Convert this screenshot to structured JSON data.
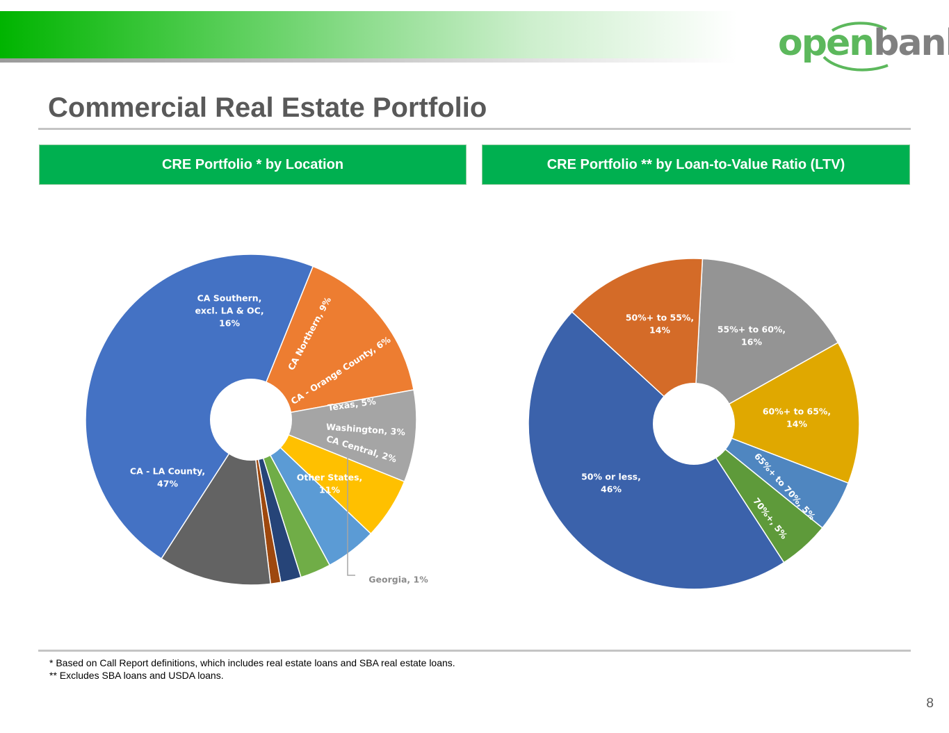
{
  "brand": {
    "name_part1": "open",
    "name_part2": "bank",
    "green": "#5cb85c",
    "gray": "#808080",
    "banner_color": "#00b400"
  },
  "page": {
    "title": "Commercial Real Estate Portfolio",
    "number": "8"
  },
  "panels": {
    "left_header": "CRE Portfolio * by Location",
    "right_header": "CRE Portfolio ** by Loan-to-Value Ratio (LTV)",
    "header_color": "#00b050"
  },
  "footnotes": {
    "note1": "* Based on Call Report definitions, which includes real estate loans and SBA real estate loans.",
    "note2": "** Excludes SBA loans and USDA loans."
  },
  "chart_data": [
    {
      "type": "pie",
      "title": "CRE Portfolio * by Location",
      "unit": "%",
      "donut": true,
      "slices": [
        {
          "name": "CA Southern, excl. LA & OC",
          "value": 16,
          "color": "#ed7d31",
          "lines": [
            "CA Southern,",
            "excl. LA & OC,",
            "16%"
          ]
        },
        {
          "name": "CA Northern",
          "value": 9,
          "color": "#a5a5a5",
          "lines": [
            "CA Northern, 9%"
          ]
        },
        {
          "name": "CA - Orange County",
          "value": 6,
          "color": "#ffc000",
          "lines": [
            "CA - Orange County, 6%"
          ]
        },
        {
          "name": "Texas",
          "value": 5,
          "color": "#5b9bd5",
          "lines": [
            "Texas, 5%"
          ]
        },
        {
          "name": "Washington",
          "value": 3,
          "color": "#70ad47",
          "lines": [
            "Washington, 3%"
          ]
        },
        {
          "name": "CA Central",
          "value": 2,
          "color": "#264478",
          "lines": [
            "CA Central, 2%"
          ]
        },
        {
          "name": "Georgia",
          "value": 1,
          "color": "#9e480e",
          "lines": [
            "Georgia, 1%"
          ]
        },
        {
          "name": "Other States",
          "value": 11,
          "color": "#636363",
          "lines": [
            "Other States,",
            "11%"
          ]
        },
        {
          "name": "CA - LA County",
          "value": 47,
          "color": "#4472c4",
          "lines": [
            "CA - LA County,",
            "47%"
          ]
        }
      ]
    },
    {
      "type": "pie",
      "title": "CRE Portfolio ** by Loan-to-Value Ratio (LTV)",
      "unit": "%",
      "donut": true,
      "slices": [
        {
          "name": "55%+ to 60%",
          "value": 16,
          "color": "#949494",
          "lines": [
            "55%+ to 60%,",
            "16%"
          ]
        },
        {
          "name": "60%+ to 65%",
          "value": 14,
          "color": "#e0a800",
          "lines": [
            "60%+ to 65%,",
            "14%"
          ]
        },
        {
          "name": "65%+ to 70%",
          "value": 5,
          "color": "#4f86c0",
          "lines": [
            "65%+ to 70%, 5%"
          ]
        },
        {
          "name": "70%+",
          "value": 5,
          "color": "#5e9a3a",
          "lines": [
            "70%+, 5%"
          ]
        },
        {
          "name": "50% or less",
          "value": 46,
          "color": "#3b62ab",
          "lines": [
            "50% or less,",
            "46%"
          ]
        },
        {
          "name": "50%+ to 55%",
          "value": 14,
          "color": "#d46b28",
          "lines": [
            "50%+ to 55%,",
            "14%"
          ]
        }
      ]
    }
  ]
}
